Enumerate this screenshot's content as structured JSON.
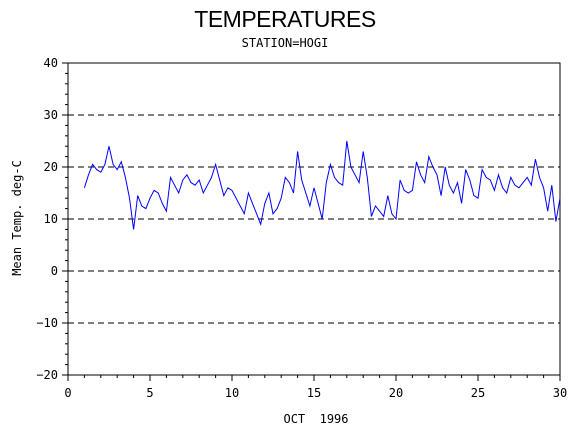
{
  "chart_data": {
    "type": "line",
    "title": "TEMPERATURES",
    "subtitle": "STATION=HOGI",
    "xlabel": "OCT  1996",
    "ylabel": "Mean Temp. deg-C",
    "xlim": [
      0,
      30
    ],
    "ylim": [
      -20,
      40
    ],
    "x_ticks": [
      0,
      5,
      10,
      15,
      20,
      25,
      30
    ],
    "y_ticks": [
      -20,
      -10,
      0,
      10,
      20,
      30,
      40
    ],
    "y_tick_labels": [
      "−20",
      "−10",
      "0",
      "10",
      "20",
      "30",
      "40"
    ],
    "grid": "horizontal dashed at major y ticks",
    "line_color": "#0000ff",
    "series": [
      {
        "x": [
          1.0,
          1.25,
          1.5,
          1.75,
          2.0,
          2.25,
          2.5,
          2.75,
          3.0,
          3.25,
          3.5,
          3.75,
          4.0,
          4.25,
          4.5,
          4.75,
          5.0,
          5.25,
          5.5,
          5.75,
          6.0,
          6.25,
          6.5,
          6.75,
          7.0,
          7.25,
          7.5,
          7.75,
          8.0,
          8.25,
          8.5,
          8.75,
          9.0,
          9.25,
          9.5,
          9.75,
          10.0,
          10.25,
          10.5,
          10.75,
          11.0,
          11.25,
          11.5,
          11.75,
          12.0,
          12.25,
          12.5,
          12.75,
          13.0,
          13.25,
          13.5,
          13.75,
          14.0,
          14.25,
          14.5,
          14.75,
          15.0,
          15.25,
          15.5,
          15.75,
          16.0,
          16.25,
          16.5,
          16.75,
          17.0,
          17.25,
          17.5,
          17.75,
          18.0,
          18.25,
          18.5,
          18.75,
          19.0,
          19.25,
          19.5,
          19.75,
          20.0,
          20.25,
          20.5,
          20.75,
          21.0,
          21.25,
          21.5,
          21.75,
          22.0,
          22.25,
          22.5,
          22.75,
          23.0,
          23.25,
          23.5,
          23.75,
          24.0,
          24.25,
          24.5,
          24.75,
          25.0,
          25.25,
          25.5,
          25.75,
          26.0,
          26.25,
          26.5,
          26.75,
          27.0,
          27.25,
          27.5,
          27.75,
          28.0,
          28.25,
          28.5,
          28.75,
          29.0,
          29.25,
          29.5,
          29.75,
          30.0
        ],
        "y": [
          16.0,
          18.5,
          20.5,
          19.5,
          19.0,
          20.5,
          24.0,
          20.5,
          19.5,
          21.0,
          18.0,
          14.0,
          8.0,
          14.5,
          12.5,
          12.0,
          14.0,
          15.5,
          15.0,
          13.0,
          11.5,
          18.0,
          16.5,
          15.0,
          17.5,
          18.5,
          17.0,
          16.5,
          17.5,
          15.0,
          16.5,
          18.0,
          20.5,
          17.5,
          14.5,
          16.0,
          15.5,
          14.0,
          12.5,
          11.0,
          15.0,
          13.0,
          11.0,
          9.0,
          13.0,
          15.0,
          11.0,
          12.0,
          14.0,
          18.0,
          17.0,
          15.0,
          23.0,
          17.5,
          15.0,
          12.5,
          16.0,
          13.0,
          10.0,
          17.0,
          20.5,
          18.0,
          17.0,
          16.5,
          25.0,
          20.0,
          18.5,
          17.0,
          23.0,
          18.0,
          10.5,
          12.5,
          11.5,
          10.5,
          14.5,
          11.0,
          10.0,
          17.5,
          15.5,
          15.0,
          15.5,
          21.0,
          18.5,
          17.0,
          22.0,
          20.0,
          18.5,
          14.5,
          20.0,
          16.5,
          15.0,
          17.0,
          13.0,
          19.5,
          17.5,
          14.5,
          14.0,
          19.5,
          18.0,
          17.5,
          15.5,
          18.5,
          16.0,
          15.0,
          18.0,
          16.5,
          16.0,
          17.0,
          18.0,
          16.5,
          21.5,
          18.0,
          16.0,
          11.5,
          16.5,
          9.5,
          14.0
        ]
      }
    ]
  }
}
